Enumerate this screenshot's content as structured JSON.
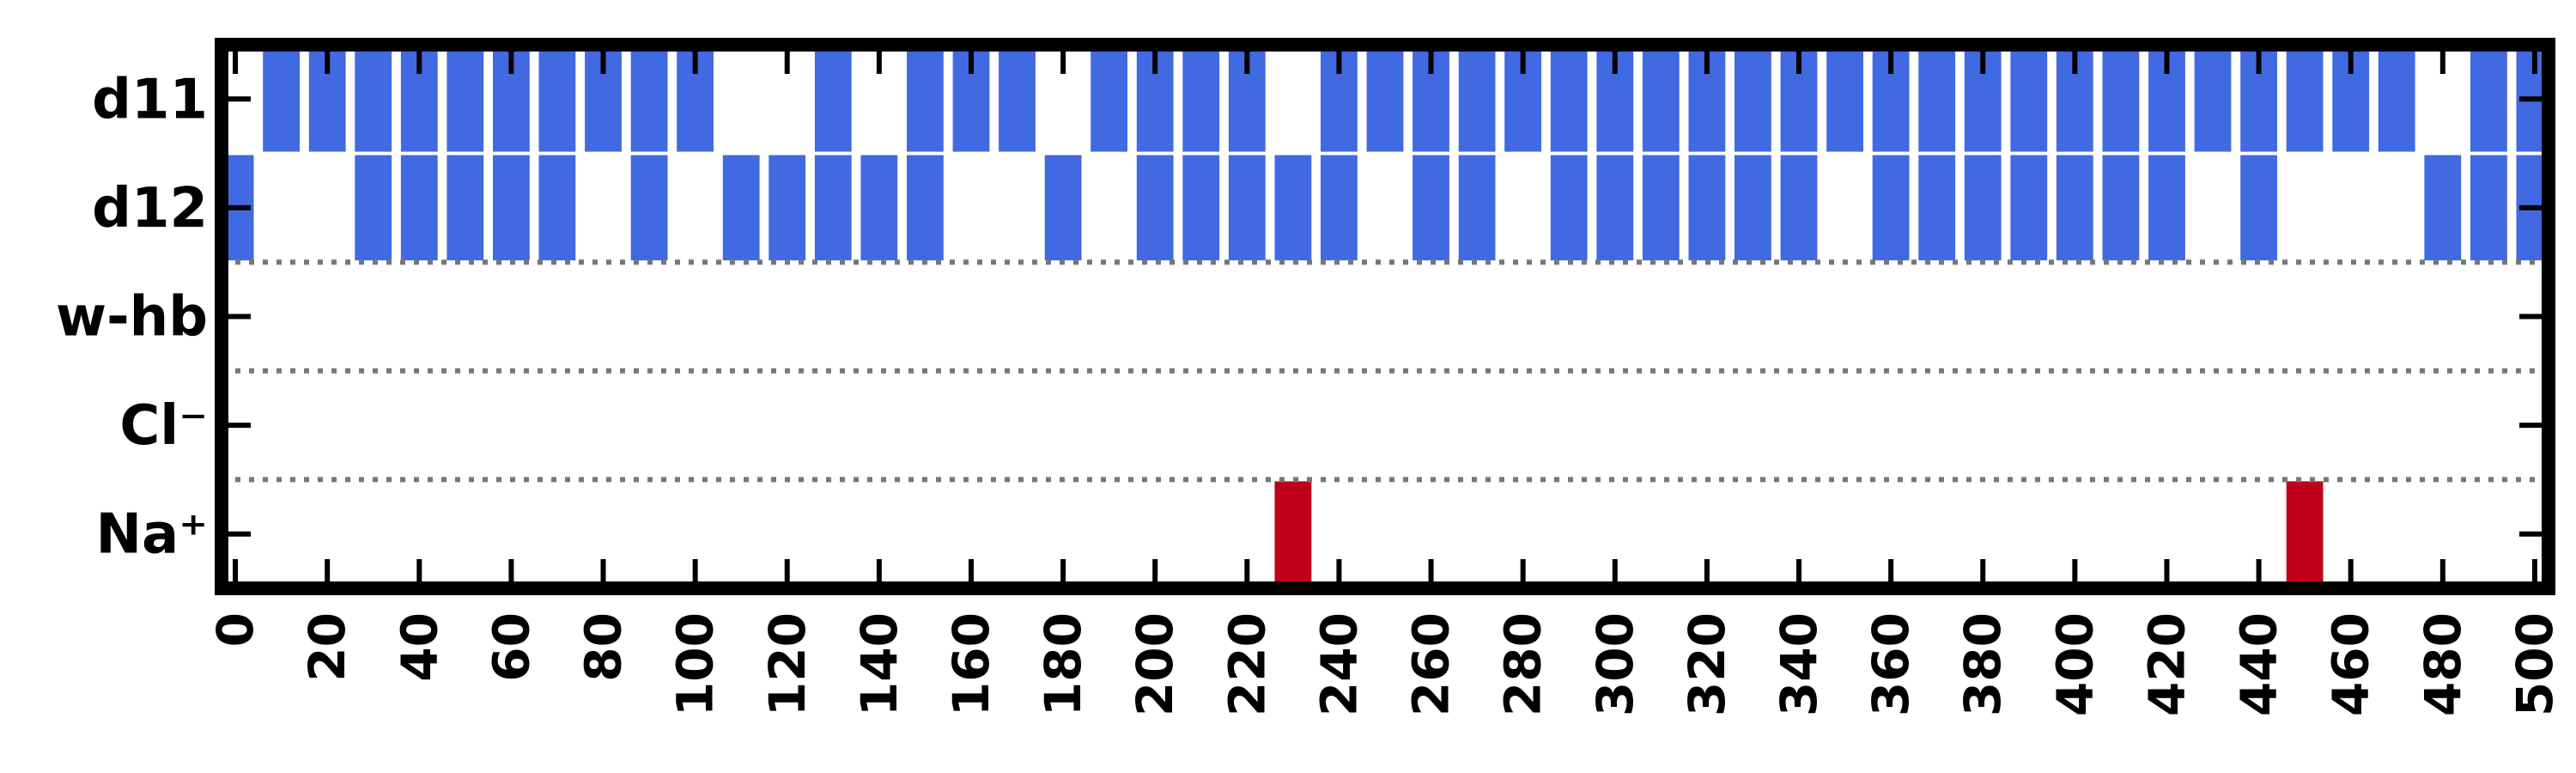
{
  "chart_data": {
    "type": "heatmap",
    "title": "",
    "xlabel": "",
    "ylabel": "",
    "xlim": [
      -3,
      503
    ],
    "x_ticks": [
      0,
      20,
      40,
      60,
      80,
      100,
      120,
      140,
      160,
      180,
      200,
      220,
      240,
      260,
      280,
      300,
      320,
      340,
      360,
      380,
      400,
      420,
      440,
      460,
      480,
      500
    ],
    "x_tick_labels": [
      "0",
      "20",
      "40",
      "60",
      "80",
      "100",
      "120",
      "140",
      "160",
      "180",
      "200",
      "220",
      "240",
      "260",
      "280",
      "300",
      "320",
      "340",
      "360",
      "380",
      "400",
      "420",
      "440",
      "460",
      "480",
      "500"
    ],
    "rows": [
      "d11",
      "d12",
      "w-hb",
      "Cl⁻",
      "Na⁺"
    ],
    "group_separators_after_rows": [
      1,
      2,
      3
    ],
    "grid": false,
    "bin_width": 10,
    "series": [
      {
        "row": "d11",
        "color": "#4169e1",
        "intervals": [
          [
            6,
            14
          ],
          [
            16,
            24
          ],
          [
            26,
            34
          ],
          [
            36,
            44
          ],
          [
            46,
            54
          ],
          [
            56,
            64
          ],
          [
            66,
            74
          ],
          [
            76,
            84
          ],
          [
            86,
            94
          ],
          [
            96,
            104
          ],
          [
            126,
            134
          ],
          [
            146,
            154
          ],
          [
            156,
            164
          ],
          [
            166,
            174
          ],
          [
            186,
            194
          ],
          [
            196,
            204
          ],
          [
            206,
            214
          ],
          [
            216,
            224
          ],
          [
            236,
            244
          ],
          [
            246,
            254
          ],
          [
            256,
            264
          ],
          [
            266,
            274
          ],
          [
            276,
            284
          ],
          [
            286,
            294
          ],
          [
            296,
            304
          ],
          [
            306,
            314
          ],
          [
            316,
            324
          ],
          [
            326,
            334
          ],
          [
            336,
            344
          ],
          [
            346,
            354
          ],
          [
            356,
            364
          ],
          [
            366,
            374
          ],
          [
            376,
            384
          ],
          [
            386,
            394
          ],
          [
            396,
            404
          ],
          [
            406,
            414
          ],
          [
            416,
            424
          ],
          [
            426,
            434
          ],
          [
            436,
            444
          ],
          [
            446,
            454
          ],
          [
            456,
            464
          ],
          [
            466,
            474
          ],
          [
            486,
            494
          ],
          [
            496,
            504
          ]
        ]
      },
      {
        "row": "d12",
        "color": "#4169e1",
        "intervals": [
          [
            -3,
            4
          ],
          [
            26,
            34
          ],
          [
            36,
            44
          ],
          [
            46,
            54
          ],
          [
            56,
            64
          ],
          [
            66,
            74
          ],
          [
            86,
            94
          ],
          [
            106,
            114
          ],
          [
            116,
            124
          ],
          [
            126,
            134
          ],
          [
            136,
            144
          ],
          [
            146,
            154
          ],
          [
            176,
            184
          ],
          [
            196,
            204
          ],
          [
            206,
            214
          ],
          [
            216,
            224
          ],
          [
            226,
            234
          ],
          [
            236,
            244
          ],
          [
            256,
            264
          ],
          [
            266,
            274
          ],
          [
            286,
            294
          ],
          [
            296,
            304
          ],
          [
            306,
            314
          ],
          [
            316,
            324
          ],
          [
            326,
            334
          ],
          [
            336,
            344
          ],
          [
            356,
            364
          ],
          [
            366,
            374
          ],
          [
            376,
            384
          ],
          [
            386,
            394
          ],
          [
            396,
            404
          ],
          [
            406,
            414
          ],
          [
            416,
            424
          ],
          [
            436,
            444
          ],
          [
            476,
            484
          ],
          [
            486,
            494
          ],
          [
            496,
            504
          ]
        ]
      },
      {
        "row": "w-hb",
        "color": "#4169e1",
        "intervals": []
      },
      {
        "row": "Cl⁻",
        "color": "#4169e1",
        "intervals": []
      },
      {
        "row": "Na⁺",
        "color": "#c0001a",
        "intervals": [
          [
            226,
            234
          ],
          [
            446,
            454
          ]
        ]
      }
    ]
  }
}
